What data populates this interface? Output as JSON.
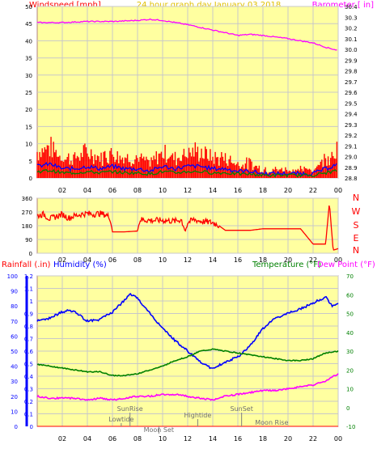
{
  "header": {
    "left_label": "Windspeed [mph]",
    "center_label": "24 hour graph day   January 03 2018",
    "right_label": "Barometer [ in]"
  },
  "middle": {
    "compass": [
      "N",
      "W",
      "S",
      "E",
      "N"
    ]
  },
  "bottom_header": {
    "rainfall_label": "Rainfall (.in)",
    "humidity_label": "Humidity (%)",
    "temperature_label": "Temperature (°F)",
    "dewpoint_label": "Dew Point (°F)"
  },
  "colors": {
    "background": "#ffffa0",
    "border": "#b08080",
    "grid": "#c8c8c8",
    "wind": "#ff0000",
    "gust_blue": "#0000ff",
    "gust_green": "#008000",
    "barometer": "#ff00ff",
    "humidity": "#0000ff",
    "temperature": "#008000",
    "dewpoint": "#ff00ff",
    "tick_text": "#000000",
    "events_text": "#808080"
  },
  "events": [
    {
      "name": "SunRise",
      "hour": 7.4
    },
    {
      "name": "Lowtide",
      "hour": 6.7
    },
    {
      "name": "Moon Set",
      "hour": 9.7
    },
    {
      "name": "Hightide",
      "hour": 12.8
    },
    {
      "name": "SunSet",
      "hour": 16.3
    },
    {
      "name": "Moon Rise",
      "hour": 18.7
    }
  ],
  "chart_data": [
    {
      "type": "line",
      "title": "24 hour graph day   January 03 2018",
      "x_ticks": [
        "02",
        "04",
        "06",
        "08",
        "10",
        "12",
        "14",
        "16",
        "18",
        "20",
        "22",
        "00"
      ],
      "x_range": [
        0,
        24
      ],
      "y_left": {
        "label": "Windspeed [mph]",
        "range": [
          0,
          50
        ],
        "ticks": [
          0,
          5,
          10,
          15,
          20,
          25,
          30,
          35,
          40,
          45,
          50
        ]
      },
      "y_right": {
        "label": "Barometer [ in]",
        "range": [
          28.8,
          30.4
        ],
        "ticks": [
          28.8,
          28.9,
          29.0,
          29.1,
          29.2,
          29.3,
          29.4,
          29.5,
          29.6,
          29.7,
          29.8,
          29.9,
          30.0,
          30.1,
          30.2,
          30.3,
          30.4
        ]
      },
      "series": [
        {
          "name": "Barometer [ in]",
          "axis": "right",
          "x": [
            0,
            2,
            4,
            6,
            8,
            9,
            10,
            11,
            12,
            14,
            16,
            17,
            18,
            20,
            22,
            23,
            24
          ],
          "values": [
            30.25,
            30.25,
            30.26,
            30.26,
            30.27,
            30.28,
            30.27,
            30.25,
            30.23,
            30.18,
            30.13,
            30.14,
            30.13,
            30.1,
            30.06,
            30.02,
            29.99
          ]
        },
        {
          "name": "Windspeed [mph]",
          "axis": "left",
          "x": [
            0,
            1,
            2,
            3,
            4,
            5,
            6,
            7,
            8,
            9,
            10,
            11,
            12,
            13,
            14,
            15,
            16,
            17,
            18,
            19,
            20,
            21,
            22,
            23,
            24
          ],
          "values": [
            4,
            5,
            3,
            3,
            4,
            3,
            4,
            3,
            3,
            2,
            4,
            3,
            4,
            4,
            3,
            3,
            2,
            2,
            1,
            1,
            1,
            1,
            1,
            3,
            5
          ]
        }
      ]
    },
    {
      "type": "line",
      "x_ticks": [
        "02",
        "04",
        "06",
        "08",
        "10",
        "12",
        "14",
        "16",
        "18",
        "20",
        "22",
        "00"
      ],
      "x_range": [
        0,
        24
      ],
      "y_left": {
        "range": [
          0,
          360
        ],
        "ticks": [
          0,
          90,
          180,
          270,
          360
        ]
      },
      "series": [
        {
          "axis": "left",
          "x": [
            0,
            0.5,
            1,
            1.5,
            2,
            2.5,
            3,
            3.5,
            4,
            4.5,
            5,
            5.5,
            5.8,
            6,
            7,
            8,
            8.2,
            9,
            10,
            11,
            11.5,
            11.8,
            12,
            12.5,
            13,
            14,
            14.5,
            15,
            16,
            17,
            18,
            19,
            20,
            21,
            22,
            22.5,
            23,
            23.3,
            23.6,
            24
          ],
          "values": [
            245,
            255,
            225,
            240,
            255,
            230,
            245,
            255,
            260,
            255,
            260,
            250,
            235,
            140,
            140,
            145,
            220,
            215,
            215,
            210,
            220,
            140,
            200,
            220,
            210,
            200,
            180,
            150,
            150,
            150,
            160,
            160,
            160,
            160,
            60,
            60,
            60,
            330,
            20,
            30
          ]
        }
      ]
    },
    {
      "type": "line",
      "x_ticks": [
        "02",
        "04",
        "06",
        "08",
        "10",
        "12",
        "14",
        "16",
        "18",
        "20",
        "22",
        "00"
      ],
      "x_range": [
        0,
        24
      ],
      "y_left_rain": {
        "label": "Rainfall (.in)",
        "range": [
          0,
          1.2
        ],
        "ticks": [
          0,
          0.1,
          0.2,
          0.3,
          0.4,
          0.5,
          0.6,
          0.7,
          0.8,
          0.9,
          1.0,
          1.1,
          1.2
        ]
      },
      "y_left_humidity": {
        "label": "Humidity (%)",
        "range": [
          0,
          100
        ],
        "ticks": [
          0,
          10,
          20,
          30,
          40,
          50,
          60,
          70,
          80,
          90,
          100
        ]
      },
      "y_right": {
        "label": "Temperature (°F)",
        "range": [
          -10,
          70
        ],
        "ticks": [
          -10,
          0,
          10,
          20,
          30,
          40,
          50,
          60,
          70
        ]
      },
      "series": [
        {
          "name": "Humidity (%)",
          "axis": "humidity",
          "x": [
            0,
            1,
            2,
            2.5,
            3,
            4,
            5,
            6,
            7,
            7.4,
            8,
            9,
            10,
            11,
            12,
            13,
            13.6,
            14,
            15,
            16,
            17,
            18,
            19,
            20,
            21,
            22,
            23,
            23.5,
            24
          ],
          "values": [
            70,
            72,
            76,
            77,
            76,
            70,
            71,
            76,
            84,
            88,
            85,
            75,
            65,
            57,
            50,
            43,
            40,
            38,
            43,
            46,
            54,
            65,
            72,
            75,
            78,
            82,
            86,
            80,
            82
          ]
        },
        {
          "name": "Temperature (°F)",
          "axis": "right",
          "x": [
            0,
            1,
            2,
            3,
            4,
            5,
            6,
            7,
            8,
            9,
            10,
            11,
            12,
            13,
            14,
            15,
            16,
            17,
            18,
            19,
            20,
            21,
            22,
            23,
            24
          ],
          "values": [
            23,
            22,
            21,
            20,
            19,
            19,
            17,
            17,
            18,
            20,
            22,
            25,
            27,
            30,
            31,
            30,
            29,
            28,
            27,
            26,
            25,
            25,
            26,
            29,
            30
          ]
        },
        {
          "name": "Dew Point (°F)",
          "axis": "right",
          "x": [
            0,
            1,
            2,
            3,
            4,
            5,
            6,
            7,
            8,
            9,
            10,
            11,
            12,
            13,
            14,
            15,
            16,
            17,
            18,
            19,
            20,
            21,
            22,
            23,
            24
          ],
          "values": [
            6,
            5,
            5,
            5,
            4,
            5,
            4,
            5,
            6,
            6,
            7,
            7,
            6,
            5,
            4,
            6,
            7,
            8,
            9,
            9,
            10,
            11,
            12,
            14,
            18
          ]
        },
        {
          "name": "Rainfall (.in)",
          "axis": "rain",
          "x": [
            0,
            24
          ],
          "values": [
            0,
            0
          ]
        }
      ]
    }
  ]
}
